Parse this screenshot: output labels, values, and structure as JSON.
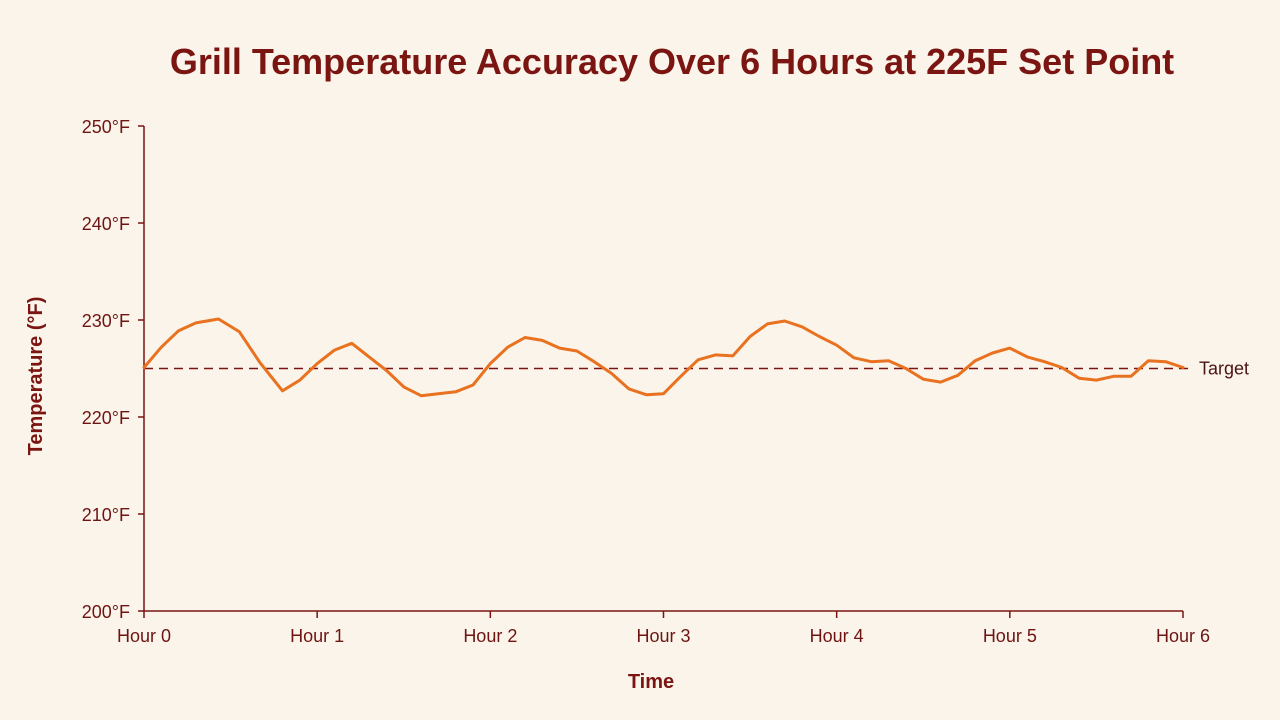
{
  "chart_data": {
    "type": "line",
    "title": "Grill Temperature Accuracy Over 6 Hours at 225F Set Point",
    "xlabel": "Time",
    "ylabel": "Temperature (°F)",
    "xlim": [
      0,
      6
    ],
    "ylim": [
      200,
      250
    ],
    "x_ticks": [
      {
        "value": 0,
        "label": "Hour 0"
      },
      {
        "value": 1,
        "label": "Hour 1"
      },
      {
        "value": 2,
        "label": "Hour 2"
      },
      {
        "value": 3,
        "label": "Hour 3"
      },
      {
        "value": 4,
        "label": "Hour 4"
      },
      {
        "value": 5,
        "label": "Hour 5"
      },
      {
        "value": 6,
        "label": "Hour 6"
      }
    ],
    "y_ticks": [
      {
        "value": 200,
        "label": "200°F"
      },
      {
        "value": 210,
        "label": "210°F"
      },
      {
        "value": 220,
        "label": "220°F"
      },
      {
        "value": 230,
        "label": "230°F"
      },
      {
        "value": 240,
        "label": "240°F"
      },
      {
        "value": 250,
        "label": "250°F"
      }
    ],
    "grid": false,
    "legend": "none",
    "series": [
      {
        "color": "#e8721f",
        "x": [
          0,
          0.1,
          0.2,
          0.3,
          0.43,
          0.55,
          0.67,
          0.8,
          0.9,
          1.0,
          1.1,
          1.2,
          1.3,
          1.4,
          1.5,
          1.6,
          1.7,
          1.8,
          1.9,
          2.0,
          2.1,
          2.2,
          2.3,
          2.4,
          2.5,
          2.6,
          2.7,
          2.8,
          2.9,
          3.0,
          3.1,
          3.2,
          3.3,
          3.4,
          3.5,
          3.6,
          3.7,
          3.8,
          3.9,
          4.0,
          4.1,
          4.2,
          4.3,
          4.4,
          4.5,
          4.6,
          4.7,
          4.8,
          4.9,
          5.0,
          5.1,
          5.2,
          5.3,
          5.4,
          5.5,
          5.6,
          5.7,
          5.8,
          5.9,
          6.0
        ],
        "y": [
          225.1,
          227.2,
          228.9,
          229.7,
          230.1,
          228.8,
          225.6,
          222.7,
          223.8,
          225.5,
          226.9,
          227.6,
          226.2,
          224.8,
          223.1,
          222.2,
          222.4,
          222.6,
          223.3,
          225.5,
          227.2,
          228.2,
          227.9,
          227.1,
          226.8,
          225.7,
          224.5,
          222.9,
          222.3,
          222.4,
          224.2,
          225.9,
          226.4,
          226.3,
          228.3,
          229.6,
          229.9,
          229.3,
          228.3,
          227.4,
          226.1,
          225.7,
          225.8,
          225.0,
          223.9,
          223.6,
          224.3,
          225.8,
          226.6,
          227.1,
          226.2,
          225.7,
          225.1,
          224.0,
          223.8,
          224.2,
          224.2,
          225.8,
          225.7,
          225.1
        ]
      }
    ],
    "reference_lines": [
      {
        "y": 225,
        "label": "Target",
        "color": "#7a1512",
        "style": "dashed"
      }
    ]
  }
}
